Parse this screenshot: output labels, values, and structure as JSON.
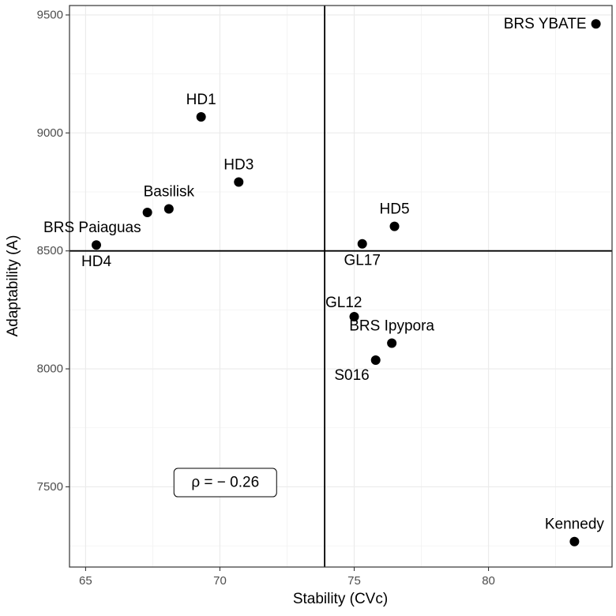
{
  "chart_data": {
    "type": "scatter",
    "xlabel": "Stability (CVc)",
    "ylabel": "Adaptability (A)",
    "xlim": [
      64.4,
      84.6
    ],
    "ylim": [
      7160,
      9540
    ],
    "x_ticks": [
      65,
      70,
      75,
      80
    ],
    "y_ticks": [
      7500,
      8000,
      8500,
      9000,
      9500
    ],
    "x_tick_labels": [
      "65",
      "70",
      "75",
      "80"
    ],
    "y_tick_labels": [
      "7500",
      "8000",
      "8500",
      "9000",
      "9500"
    ],
    "grid": true,
    "reference_lines": {
      "x": 73.9,
      "y": 8500
    },
    "annotation": "ρ = − 0.26",
    "annotation_position": {
      "x": 70.2,
      "y": 7518
    },
    "points": [
      {
        "name": "BRS YBATE",
        "x": 84.0,
        "y": 9462,
        "label_side": "left"
      },
      {
        "name": "HD1",
        "x": 69.3,
        "y": 9068,
        "label_side": "above"
      },
      {
        "name": "HD3",
        "x": 70.7,
        "y": 8792,
        "label_side": "above"
      },
      {
        "name": "Basilisk",
        "x": 68.1,
        "y": 8678,
        "label_side": "above"
      },
      {
        "name": "BRS Paiaguas",
        "x": 67.3,
        "y": 8663,
        "label_side": "below-left"
      },
      {
        "name": "HD4",
        "x": 65.4,
        "y": 8525,
        "label_side": "below"
      },
      {
        "name": "HD5",
        "x": 76.5,
        "y": 8604,
        "label_side": "above"
      },
      {
        "name": "GL17",
        "x": 75.3,
        "y": 8530,
        "label_side": "below"
      },
      {
        "name": "GL12",
        "x": 75.0,
        "y": 8221,
        "label_side": "above-left"
      },
      {
        "name": "BRS Ipypora",
        "x": 76.4,
        "y": 8109,
        "label_side": "above"
      },
      {
        "name": "S016",
        "x": 75.8,
        "y": 8037,
        "label_side": "below-left"
      },
      {
        "name": "Kennedy",
        "x": 83.2,
        "y": 7268,
        "label_side": "above"
      }
    ]
  }
}
